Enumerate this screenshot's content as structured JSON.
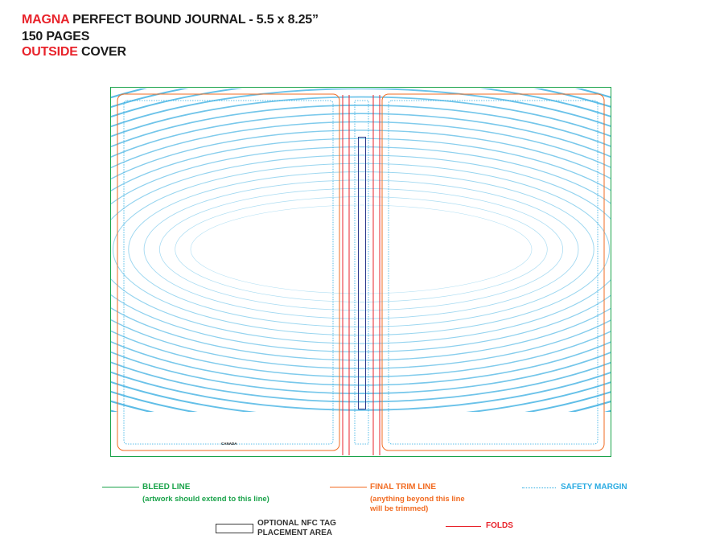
{
  "header": {
    "line1_brand": "MAGNA",
    "line1_rest": " PERFECT BOUND JOURNAL - 5.5 x 8.25”",
    "line2": "150 PAGES",
    "line3_accent": "OUTSIDE",
    "line3_rest": " COVER"
  },
  "template": {
    "canada_label": "CANADA"
  },
  "legend": {
    "bleed_title": "BLEED LINE",
    "bleed_note": "(artwork should extend to this line)",
    "trim_title": "FINAL TRIM LINE",
    "trim_note_1": "(anything beyond this line",
    "trim_note_2": "will be trimmed)",
    "safety_title": "SAFETY MARGIN",
    "nfc_title_1": "OPTIONAL NFC TAG",
    "nfc_title_2": "PLACEMENT AREA",
    "folds_title": "FOLDS"
  },
  "colors": {
    "bleed": "#1aa34a",
    "trim": "#f26b21",
    "safety": "#29abe2",
    "folds": "#e8232b",
    "pattern": "#1fa3dd",
    "brand": "#e8232b"
  }
}
